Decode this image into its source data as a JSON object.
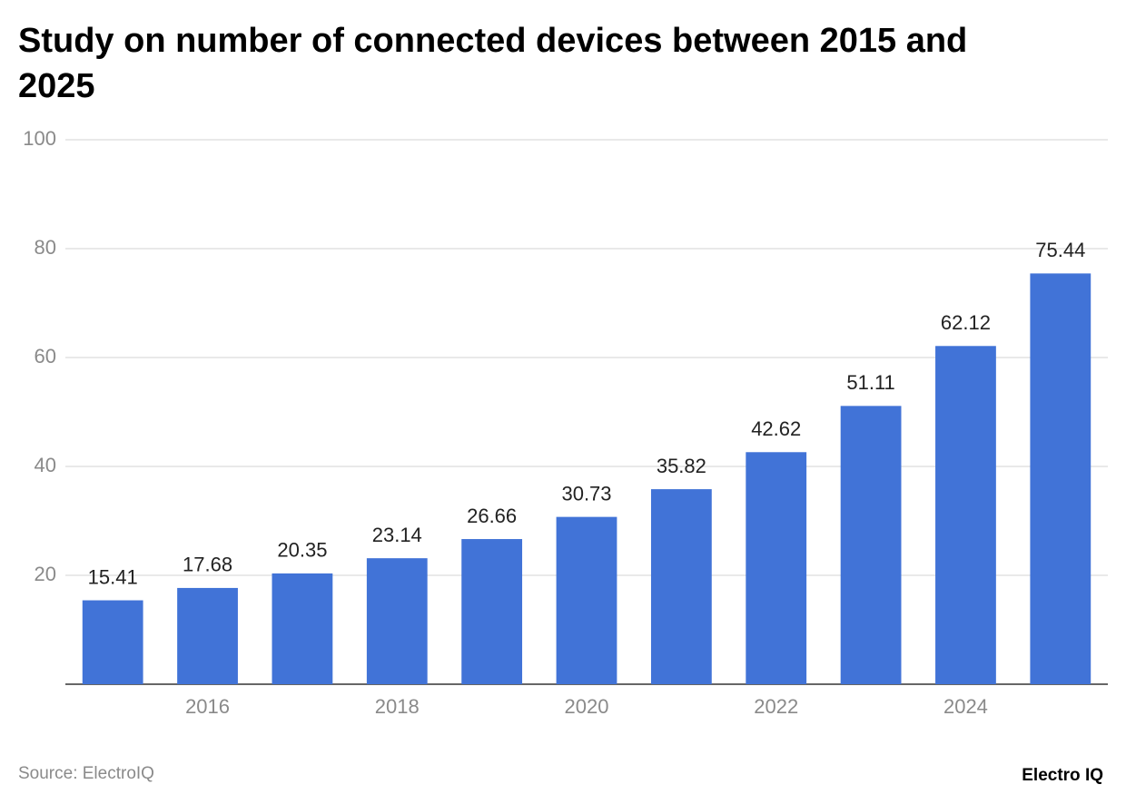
{
  "chart_data": {
    "type": "bar",
    "title": "Study on number of connected devices between 2015 and 2025",
    "categories": [
      null,
      "2016",
      null,
      "2018",
      null,
      "2020",
      null,
      "2022",
      null,
      "2024",
      null
    ],
    "values": [
      15.41,
      17.68,
      20.35,
      23.14,
      26.66,
      30.73,
      35.82,
      42.62,
      51.11,
      62.12,
      75.44
    ],
    "color": "#4173d7",
    "ylim": [
      0,
      100
    ],
    "yticks": [
      20,
      40,
      60,
      80,
      100
    ],
    "grid": true,
    "source": "Source: ElectroIQ",
    "brand": "Electro IQ"
  }
}
